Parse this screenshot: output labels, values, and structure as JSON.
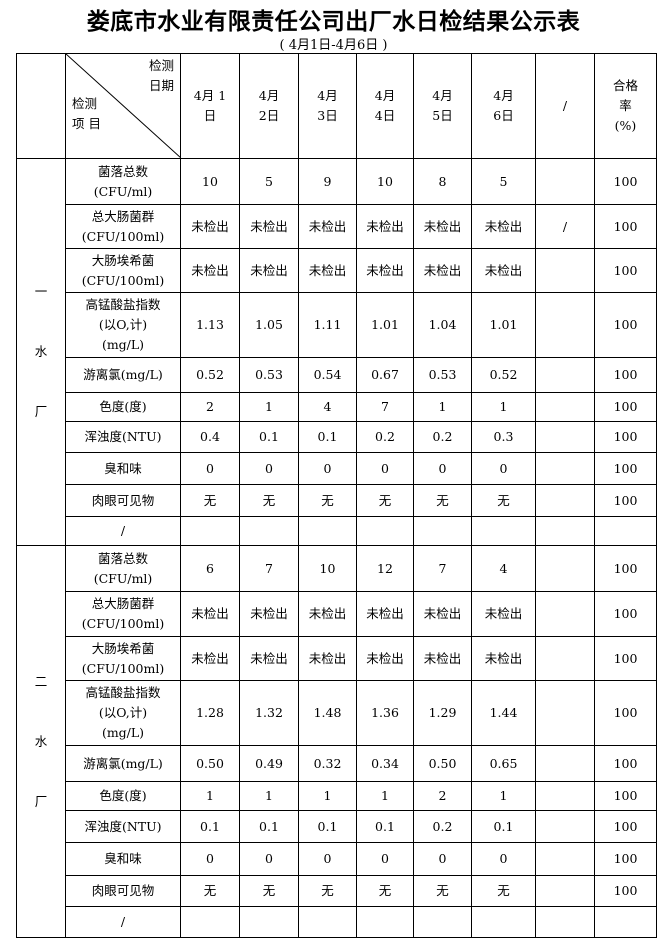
{
  "title": "娄底市水业有限责任公司出厂水日检结果公示表",
  "subtitle": "(   4月1日-4月6日   )",
  "header": {
    "diag_top": [
      "检测",
      "日期"
    ],
    "diag_bottom": [
      "检测",
      "项 目"
    ],
    "dates": [
      [
        "4月 1",
        "日"
      ],
      [
        "4月",
        "2日"
      ],
      [
        "4月",
        "3日"
      ],
      [
        "4月",
        "4日"
      ],
      [
        "4月",
        "5日"
      ],
      [
        "4月",
        "6日"
      ]
    ],
    "extra": "/",
    "pass_rate": [
      "合格",
      "率",
      "(%)"
    ]
  },
  "sections": [
    {
      "plant": [
        "一",
        "水",
        "厂"
      ],
      "rows": [
        {
          "item": [
            "菌落总数",
            "(CFU/ml)"
          ],
          "values": [
            "10",
            "5",
            "9",
            "10",
            "8",
            "5"
          ],
          "extra": "",
          "rate": "100"
        },
        {
          "item": [
            "总大肠菌群",
            "(CFU/100ml)"
          ],
          "values": [
            "未检出",
            "未检出",
            "未检出",
            "未检出",
            "未检出",
            "未检出"
          ],
          "extra": "/",
          "rate": "100"
        },
        {
          "item": [
            "大肠埃希菌",
            "(CFU/100ml)"
          ],
          "values": [
            "未检出",
            "未检出",
            "未检出",
            "未检出",
            "未检出",
            "未检出"
          ],
          "extra": "",
          "rate": "100"
        },
        {
          "item": [
            "高锰酸盐指数",
            "(以O,计)",
            "(mg/L)"
          ],
          "values": [
            "1.13",
            "1.05",
            "1.11",
            "1.01",
            "1.04",
            "1.01"
          ],
          "extra": "",
          "rate": "100"
        },
        {
          "item": [
            "游离氯(mg/L)"
          ],
          "values": [
            "0.52",
            "0.53",
            "0.54",
            "0.67",
            "0.53",
            "0.52"
          ],
          "extra": "",
          "rate": "100"
        },
        {
          "item": [
            "色度(度)"
          ],
          "values": [
            "2",
            "1",
            "4",
            "7",
            "1",
            "1"
          ],
          "extra": "",
          "rate": "100"
        },
        {
          "item": [
            "浑浊度(NTU)"
          ],
          "values": [
            "0.4",
            "0.1",
            "0.1",
            "0.2",
            "0.2",
            "0.3"
          ],
          "extra": "",
          "rate": "100"
        },
        {
          "item": [
            "臭和味"
          ],
          "values": [
            "0",
            "0",
            "0",
            "0",
            "0",
            "0"
          ],
          "extra": "",
          "rate": "100"
        },
        {
          "item": [
            "肉眼可见物"
          ],
          "values": [
            "无",
            "无",
            "无",
            "无",
            "无",
            "无"
          ],
          "extra": "",
          "rate": "100"
        },
        {
          "item": [
            "/"
          ],
          "values": [
            "",
            "",
            "",
            "",
            "",
            ""
          ],
          "extra": "",
          "rate": ""
        }
      ]
    },
    {
      "plant": [
        "二",
        "水",
        "厂"
      ],
      "rows": [
        {
          "item": [
            "菌落总数",
            "(CFU/ml)"
          ],
          "values": [
            "6",
            "7",
            "10",
            "12",
            "7",
            "4"
          ],
          "extra": "",
          "rate": "100"
        },
        {
          "item": [
            "总大肠菌群",
            "(CFU/100ml)"
          ],
          "values": [
            "未检出",
            "未检出",
            "未检出",
            "未检出",
            "未检出",
            "未检出"
          ],
          "extra": "",
          "rate": "100"
        },
        {
          "item": [
            "大肠埃希菌",
            "(CFU/100ml)"
          ],
          "values": [
            "未检出",
            "未检出",
            "未检出",
            "未检出",
            "未检出",
            "未检出"
          ],
          "extra": "",
          "rate": "100"
        },
        {
          "item": [
            "高锰酸盐指数",
            "(以O,计)",
            "(mg/L)"
          ],
          "values": [
            "1.28",
            "1.32",
            "1.48",
            "1.36",
            "1.29",
            "1.44"
          ],
          "extra": "",
          "rate": "100"
        },
        {
          "item": [
            "游离氯(mg/L)"
          ],
          "values": [
            "0.50",
            "0.49",
            "0.32",
            "0.34",
            "0.50",
            "0.65"
          ],
          "extra": "",
          "rate": "100"
        },
        {
          "item": [
            "色度(度)"
          ],
          "values": [
            "1",
            "1",
            "1",
            "1",
            "2",
            "1"
          ],
          "extra": "",
          "rate": "100"
        },
        {
          "item": [
            "浑浊度(NTU)"
          ],
          "values": [
            "0.1",
            "0.1",
            "0.1",
            "0.1",
            "0.2",
            "0.1"
          ],
          "extra": "",
          "rate": "100"
        },
        {
          "item": [
            "臭和味"
          ],
          "values": [
            "0",
            "0",
            "0",
            "0",
            "0",
            "0"
          ],
          "extra": "",
          "rate": "100"
        },
        {
          "item": [
            "肉眼可见物"
          ],
          "values": [
            "无",
            "无",
            "无",
            "无",
            "无",
            "无"
          ],
          "extra": "",
          "rate": "100"
        },
        {
          "item": [
            "/"
          ],
          "values": [
            "",
            "",
            "",
            "",
            "",
            ""
          ],
          "extra": "",
          "rate": ""
        }
      ]
    }
  ]
}
